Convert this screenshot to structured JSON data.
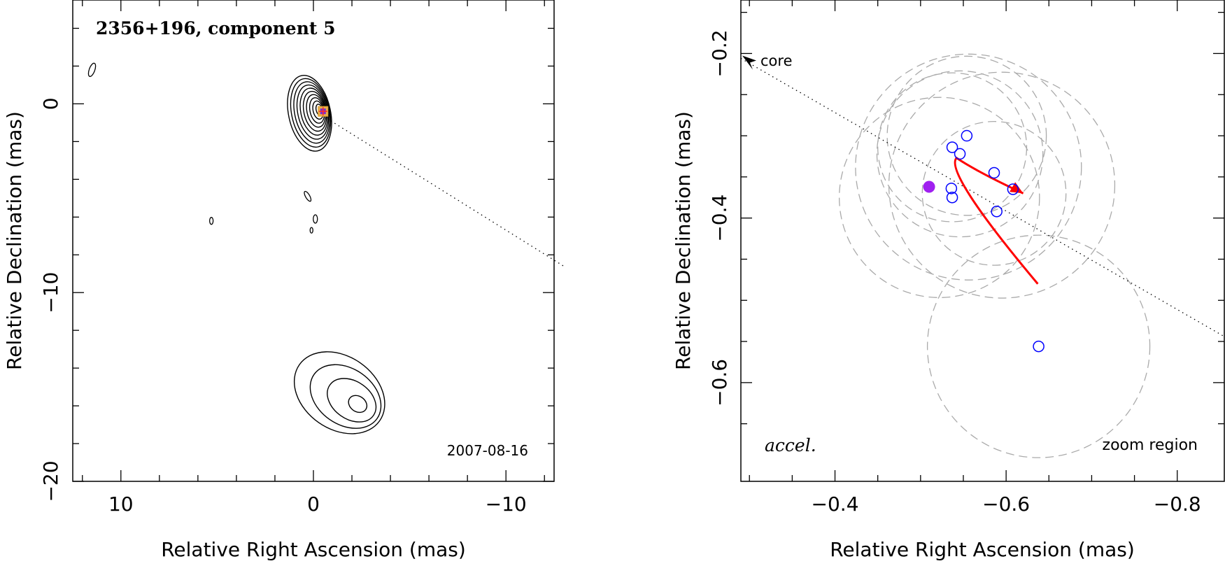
{
  "chart_data": [
    {
      "type": "contour",
      "title": "2356+196, component 5",
      "date_label": "2007-08-16",
      "xlabel": "Relative Right Ascension (mas)",
      "ylabel": "Relative Declination (mas)",
      "xlim": [
        12.5,
        -12.5
      ],
      "ylim": [
        -20,
        5.5
      ],
      "xticks": [
        10,
        0,
        -10
      ],
      "xtick_labels": [
        "10",
        "0",
        "−10"
      ],
      "yticks": [
        0,
        -10,
        -20
      ],
      "ytick_labels": [
        "0",
        "−10",
        "−20"
      ],
      "marker_position": [
        -0.5,
        -0.4
      ],
      "jet_direction_line": [
        [
          -0.9,
          -0.9
        ],
        [
          -13,
          -8.6
        ]
      ],
      "contour_groups": [
        {
          "name": "core",
          "center": [
            0.2,
            -0.5
          ],
          "levels": 10
        },
        {
          "name": "southern",
          "center": [
            -2.3,
            -15.9
          ],
          "levels": 4
        },
        {
          "name": "west-blob",
          "center": [
            11.5,
            1.8
          ],
          "levels": 1
        },
        {
          "name": "mid-blobs",
          "center": [
            0.5,
            -5.5
          ],
          "levels": 1
        }
      ]
    },
    {
      "type": "scatter",
      "xlabel": "Relative Right Ascension (mas)",
      "ylabel": "Relative Declination (mas)",
      "xlim": [
        -0.29,
        -0.855
      ],
      "ylim": [
        -0.72,
        -0.135
      ],
      "xticks": [
        -0.4,
        -0.6,
        -0.8
      ],
      "xtick_labels": [
        "−0.4",
        "−0.6",
        "−0.8"
      ],
      "yticks": [
        -0.2,
        -0.4,
        -0.6
      ],
      "ytick_labels": [
        "−0.2",
        "−0.4",
        "−0.6"
      ],
      "annotations": {
        "core": "core",
        "accel": "accel.",
        "zoom": "zoom region"
      },
      "open_points": [
        {
          "x": -0.554,
          "y": -0.3
        },
        {
          "x": -0.537,
          "y": -0.314
        },
        {
          "x": -0.546,
          "y": -0.322
        },
        {
          "x": -0.586,
          "y": -0.345
        },
        {
          "x": -0.608,
          "y": -0.365
        },
        {
          "x": -0.536,
          "y": -0.364
        },
        {
          "x": -0.537,
          "y": -0.375
        },
        {
          "x": -0.589,
          "y": -0.392
        },
        {
          "x": -0.638,
          "y": -0.556
        }
      ],
      "filled_point": {
        "x": -0.51,
        "y": -0.362,
        "color": "#a020f0"
      },
      "dashed_circles": [
        {
          "x": -0.537,
          "y": -0.314,
          "r": 0.087
        },
        {
          "x": -0.554,
          "y": -0.3,
          "r": 0.093
        },
        {
          "x": -0.546,
          "y": -0.322,
          "r": 0.097
        },
        {
          "x": -0.556,
          "y": -0.338,
          "r": 0.132
        },
        {
          "x": -0.586,
          "y": -0.37,
          "r": 0.084
        },
        {
          "x": -0.522,
          "y": -0.375,
          "r": 0.117
        },
        {
          "x": -0.595,
          "y": -0.36,
          "r": 0.132
        },
        {
          "x": -0.638,
          "y": -0.556,
          "r": 0.13
        }
      ],
      "jet_line": {
        "from": [
          -0.29,
          -0.206
        ],
        "to": [
          -0.855,
          -0.544
        ]
      },
      "red_arrows": [
        {
          "from": [
            -0.637,
            -0.48
          ],
          "to": [
            -0.542,
            -0.327
          ]
        },
        {
          "from": [
            -0.542,
            -0.327
          ],
          "to": [
            -0.62,
            -0.37
          ]
        }
      ],
      "colors": {
        "open_points": "#0000ff",
        "arrow": "#ff0000",
        "circles": "#aaaaaa"
      }
    }
  ]
}
